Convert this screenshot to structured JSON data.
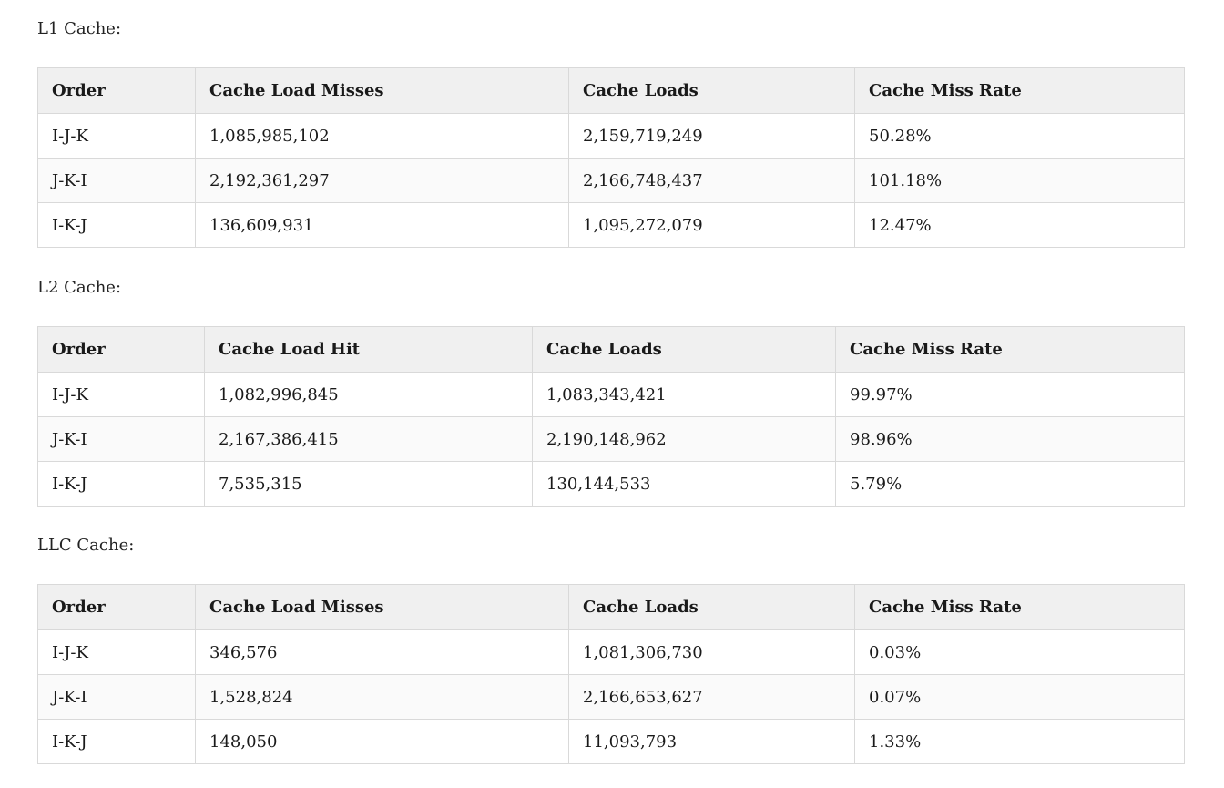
{
  "tables": [
    {
      "label": "L1 Cache:",
      "headers": [
        "Order",
        "Cache Load Misses",
        "Cache Loads",
        "Cache Miss Rate"
      ],
      "rows": [
        [
          "I-J-K",
          "1,085,985,102",
          "2,159,719,249",
          "50.28%"
        ],
        [
          "J-K-I",
          "2,192,361,297",
          "2,166,748,437",
          "101.18%"
        ],
        [
          "I-K-J",
          "136,609,931",
          "1,095,272,079",
          "12.47%"
        ]
      ]
    },
    {
      "label": "L2 Cache:",
      "headers": [
        "Order",
        "Cache Load Hit",
        "Cache Loads",
        "Cache Miss Rate"
      ],
      "rows": [
        [
          "I-J-K",
          "1,082,996,845",
          "1,083,343,421",
          "99.97%"
        ],
        [
          "J-K-I",
          "2,167,386,415",
          "2,190,148,962",
          "98.96%"
        ],
        [
          "I-K-J",
          "7,535,315",
          "130,144,533",
          "5.79%"
        ]
      ]
    },
    {
      "label": "LLC Cache:",
      "headers": [
        "Order",
        "Cache Load Misses",
        "Cache Loads",
        "Cache Miss Rate"
      ],
      "rows": [
        [
          "I-J-K",
          "346,576",
          "1,081,306,730",
          "0.03%"
        ],
        [
          "J-K-I",
          "1,528,824",
          "2,166,653,627",
          "0.07%"
        ],
        [
          "I-K-J",
          "148,050",
          "11,093,793",
          "1.33%"
        ]
      ]
    }
  ]
}
